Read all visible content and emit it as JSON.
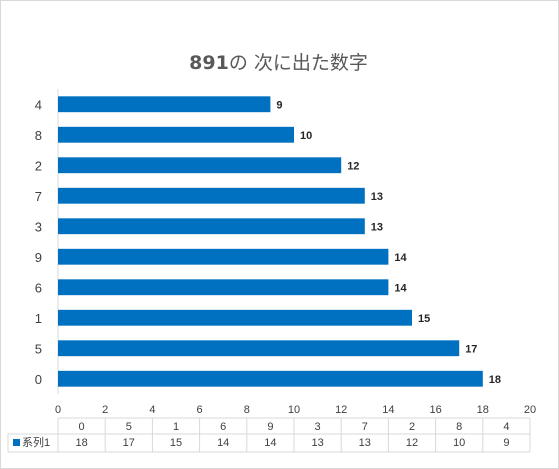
{
  "chart_data": {
    "type": "bar",
    "orientation": "horizontal",
    "title": "891の 次に出た数字",
    "categories": [
      "4",
      "8",
      "2",
      "7",
      "3",
      "9",
      "6",
      "1",
      "5",
      "0"
    ],
    "series": [
      {
        "name": "系列1",
        "values": [
          9,
          10,
          12,
          13,
          13,
          14,
          14,
          15,
          17,
          18
        ],
        "color": "#0070c0"
      }
    ],
    "xlim": [
      0,
      20
    ],
    "xticks": [
      0,
      2,
      4,
      6,
      8,
      10,
      12,
      14,
      16,
      18,
      20
    ],
    "data_table": {
      "header": [
        "0",
        "5",
        "1",
        "6",
        "9",
        "3",
        "7",
        "2",
        "8",
        "4"
      ],
      "rows": [
        {
          "name": "系列1",
          "values": [
            "18",
            "17",
            "15",
            "14",
            "14",
            "13",
            "13",
            "12",
            "10",
            "9"
          ]
        }
      ]
    },
    "gridlines": false
  }
}
